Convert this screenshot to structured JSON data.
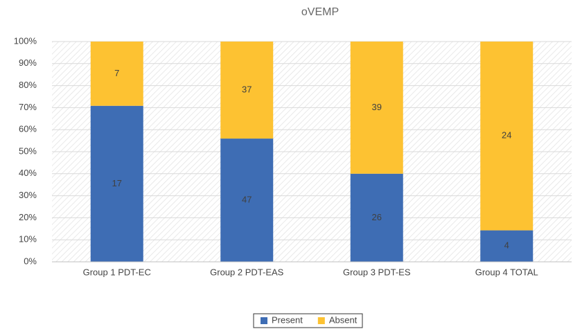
{
  "chart_data": {
    "type": "bar",
    "stacked": "percent",
    "title": "oVEMP",
    "categories": [
      "Group 1 PDT-EC",
      "Group 2 PDT-EAS",
      "Group 3 PDT-ES",
      "Group 4 TOTAL"
    ],
    "series": [
      {
        "name": "Present",
        "color": "#3e6db4",
        "values": [
          17,
          47,
          26,
          4
        ]
      },
      {
        "name": "Absent",
        "color": "#fdc232",
        "values": [
          7,
          37,
          39,
          24
        ]
      }
    ],
    "ylim": [
      0,
      100
    ],
    "yticks": [
      {
        "value": 0,
        "label": "0%"
      },
      {
        "value": 10,
        "label": "10%"
      },
      {
        "value": 20,
        "label": "20%"
      },
      {
        "value": 30,
        "label": "30%"
      },
      {
        "value": 40,
        "label": "40%"
      },
      {
        "value": 50,
        "label": "50%"
      },
      {
        "value": 60,
        "label": "60%"
      },
      {
        "value": 70,
        "label": "70%"
      },
      {
        "value": 80,
        "label": "80%"
      },
      {
        "value": 90,
        "label": "90%"
      },
      {
        "value": 100,
        "label": "100%"
      }
    ],
    "grid": true,
    "legend": "bottom"
  }
}
